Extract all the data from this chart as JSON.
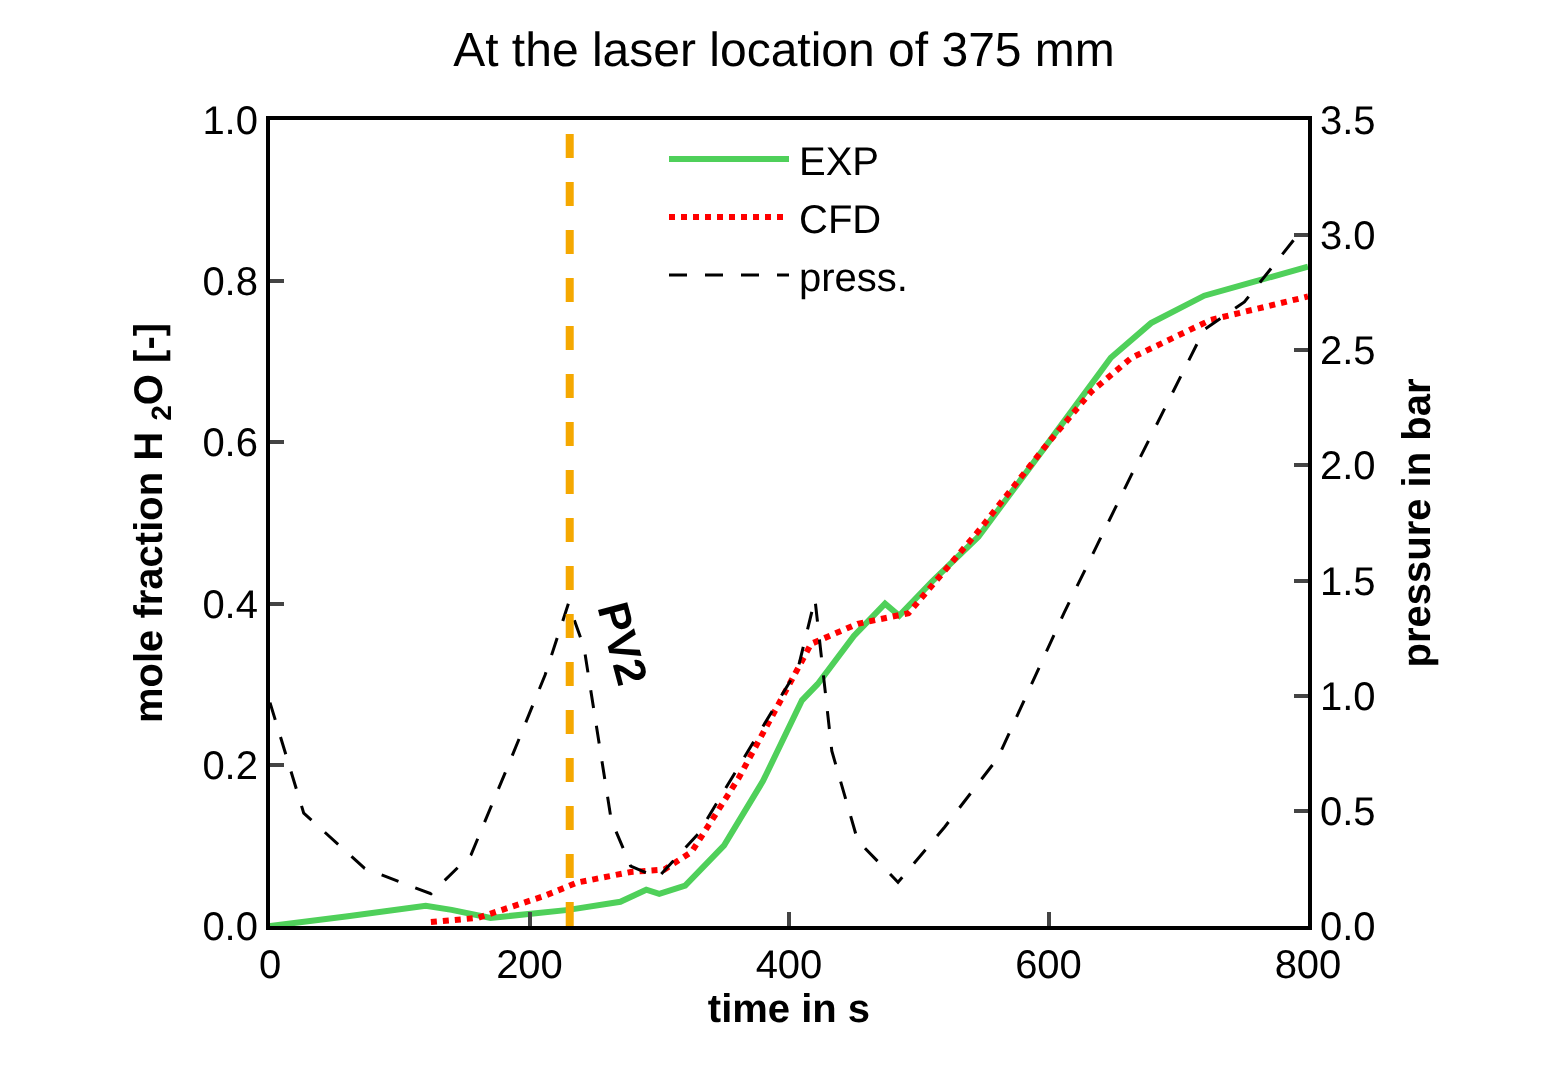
{
  "chart_data": {
    "type": "line",
    "title": "At the laser location of 375 mm",
    "xlabel": "time in s",
    "ylabel": "mole fraction H $_{2}$O [-]",
    "y2label": "pressure in bar",
    "xlim": [
      0,
      800
    ],
    "xticks": [
      0,
      200,
      400,
      600,
      800
    ],
    "ylim": [
      0,
      1
    ],
    "yticks": [
      {
        "value": 0,
        "label": "0.0"
      },
      0.2,
      0.4,
      0.6,
      0.8,
      {
        "value": 1,
        "label": "1.0"
      }
    ],
    "y2lim": [
      0,
      3.5
    ],
    "y2ticks": [
      {
        "value": 0,
        "label": "0.0"
      },
      0.5,
      {
        "value": 1,
        "label": "1.0"
      },
      1.5,
      {
        "value": 2,
        "label": "2.0"
      },
      2.5,
      {
        "value": 3,
        "label": "3.0"
      },
      3.5
    ],
    "legend": "top",
    "marker": "none",
    "series": [
      {
        "name": "EXP",
        "color": "#4fd05a",
        "line_style": "solid",
        "x": [
          0,
          60,
          120,
          140,
          170,
          230,
          270,
          290,
          300,
          320,
          350,
          380,
          410,
          422,
          450,
          474,
          485,
          510,
          546,
          600,
          648,
          679,
          720,
          760,
          800
        ],
        "values": [
          0,
          0.012,
          0.025,
          0.02,
          0.01,
          0.02,
          0.03,
          0.045,
          0.04,
          0.05,
          0.1,
          0.18,
          0.28,
          0.3,
          0.36,
          0.4,
          0.385,
          0.427,
          0.483,
          0.6,
          0.705,
          0.748,
          0.782,
          0.8,
          0.818
        ]
      },
      {
        "name": "CFD",
        "color": "#ff0000",
        "line_style": "dotted",
        "x": [
          124,
          160,
          211,
          237,
          278,
          304,
          325,
          361,
          407,
          417,
          453,
          492,
          546,
          600,
          633,
          664,
          725,
          800
        ],
        "values": [
          0.005,
          0.01,
          0.037,
          0.054,
          0.067,
          0.07,
          0.092,
          0.183,
          0.32,
          0.35,
          0.375,
          0.388,
          0.49,
          0.6,
          0.663,
          0.705,
          0.752,
          0.781
        ]
      },
      {
        "name": "press.",
        "color": "#000000",
        "line_style": "dashed",
        "axis": "y2",
        "x": [
          0,
          26,
          73,
          124,
          155,
          186,
          212,
          230,
          242,
          263,
          278,
          299,
          330,
          407,
          420,
          433,
          453,
          484,
          520,
          561,
          612,
          664,
          720,
          751,
          792,
          800
        ],
        "values": [
          0.97,
          0.49,
          0.25,
          0.14,
          0.31,
          0.73,
          1.09,
          1.4,
          1.21,
          0.46,
          0.26,
          0.21,
          0.4,
          1.12,
          1.42,
          0.76,
          0.37,
          0.19,
          0.43,
          0.73,
          1.36,
          1.96,
          2.59,
          2.71,
          3.0,
          3.0
        ]
      }
    ],
    "ref_lines": [
      {
        "axis": "x",
        "value": 231,
        "label": "PV2",
        "color": "#f5a800",
        "line_style": "dashed"
      }
    ]
  }
}
